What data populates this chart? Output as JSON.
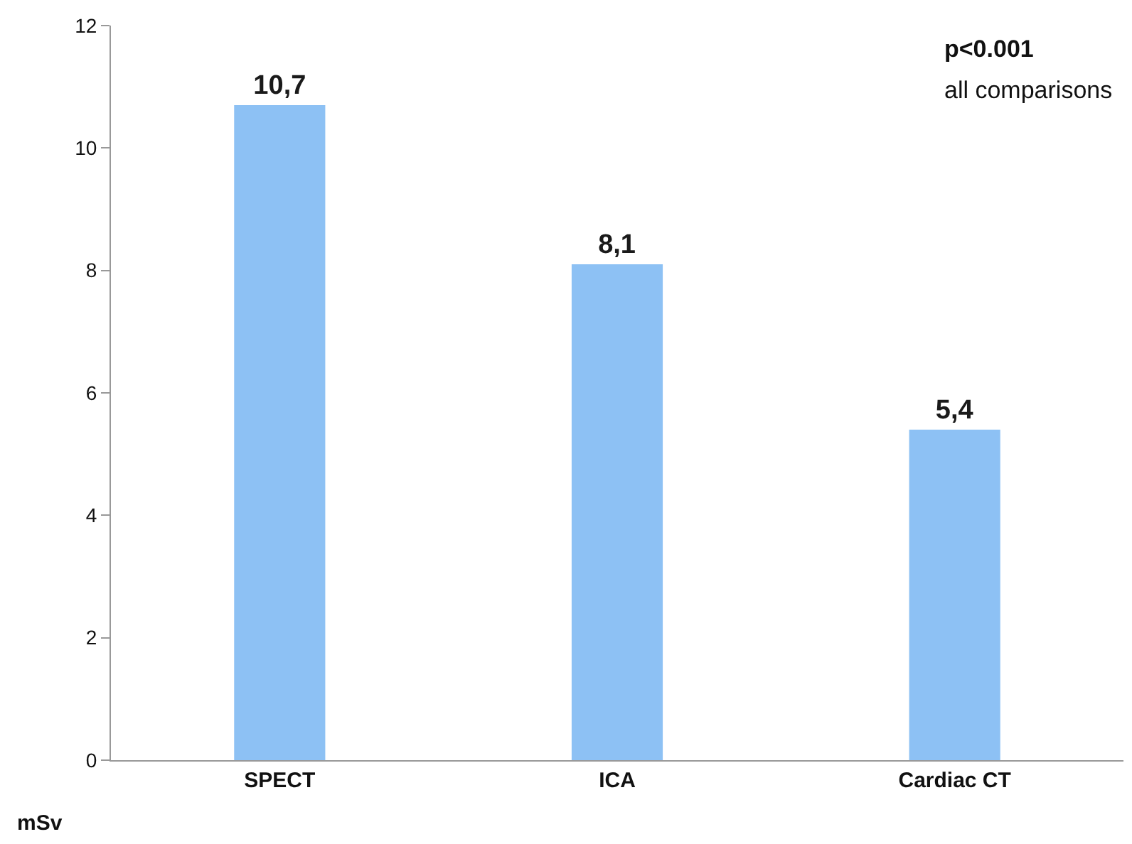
{
  "chart_data": {
    "type": "bar",
    "ylabel": "mSv",
    "categories": [
      "SPECT",
      "ICA",
      "Cardiac CT"
    ],
    "values": [
      10.7,
      8.1,
      5.4
    ],
    "value_labels": [
      "10,7",
      "8,1",
      "5,4"
    ],
    "color": "#8dc1f4",
    "ylim": [
      0,
      12
    ],
    "yticks": [
      0,
      2,
      4,
      6,
      8,
      10,
      12
    ],
    "annotations": [
      "p<0.001",
      "all comparisons"
    ]
  }
}
